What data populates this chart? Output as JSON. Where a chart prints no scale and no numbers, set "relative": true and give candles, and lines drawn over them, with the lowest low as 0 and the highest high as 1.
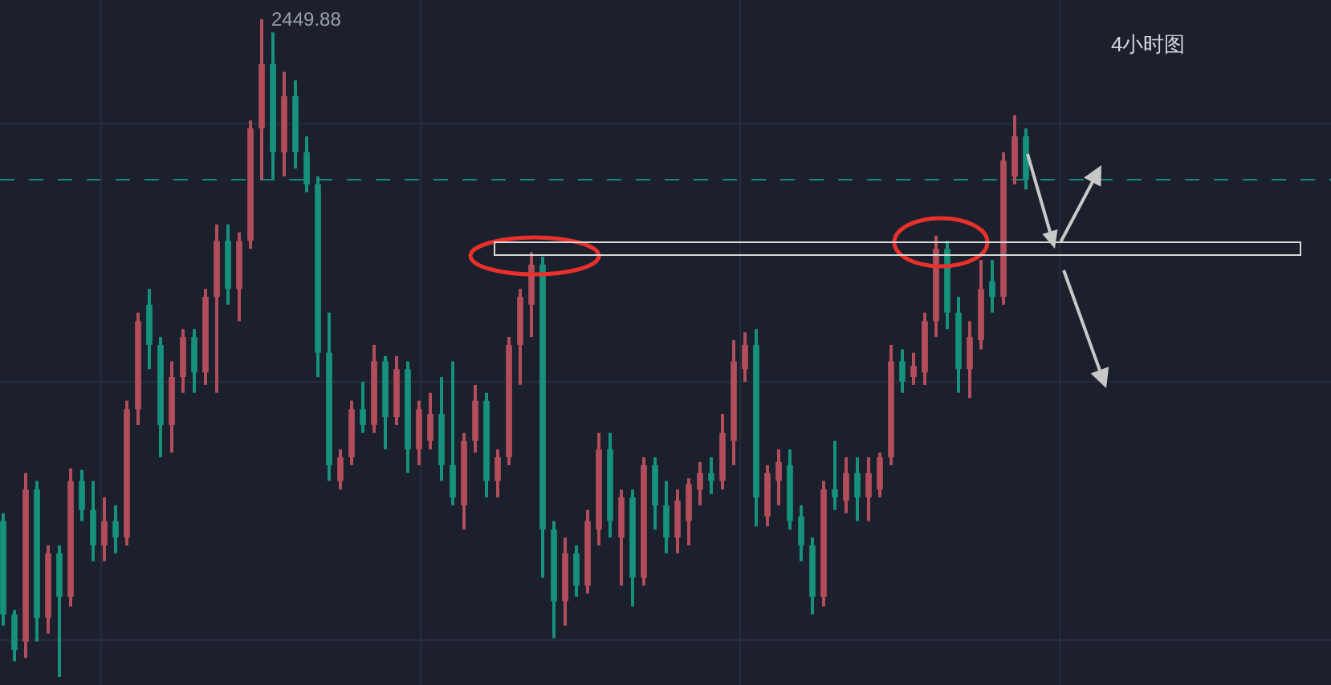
{
  "chart_data": {
    "type": "candlestick",
    "relative": true,
    "categories": [
      null,
      null,
      null,
      null,
      null,
      null,
      null,
      null,
      null,
      null,
      null,
      null,
      null,
      null,
      null,
      null,
      null,
      null,
      null,
      null,
      null,
      null,
      null,
      null,
      null,
      null,
      null,
      null,
      null,
      null,
      null,
      null,
      null,
      null,
      null,
      null,
      null,
      null,
      null,
      null,
      null,
      null,
      null,
      null,
      null,
      null,
      null,
      null,
      null,
      null,
      null,
      null,
      null,
      null,
      null,
      null,
      null,
      null,
      null,
      null,
      null,
      null,
      null,
      null,
      null,
      null,
      null,
      null,
      null,
      null,
      null,
      null,
      null,
      null,
      null,
      null,
      null,
      null,
      null,
      null,
      null,
      null,
      null,
      null,
      null,
      null,
      null,
      null,
      null,
      null,
      null,
      null
    ],
    "ohlc": [
      [
        0.237,
        0.249,
        0.078,
        0.095
      ],
      [
        0.095,
        0.102,
        0.024,
        0.041
      ],
      [
        0.054,
        0.31,
        0.029,
        0.285
      ],
      [
        0.285,
        0.298,
        0.054,
        0.09
      ],
      [
        0.09,
        0.2,
        0.066,
        0.188
      ],
      [
        0.188,
        0.2,
        0.0,
        0.122
      ],
      [
        0.122,
        0.317,
        0.107,
        0.298
      ],
      [
        0.298,
        0.315,
        0.237,
        0.254
      ],
      [
        0.254,
        0.298,
        0.176,
        0.2
      ],
      [
        0.2,
        0.273,
        0.176,
        0.237
      ],
      [
        0.237,
        0.261,
        0.188,
        0.212
      ],
      [
        0.212,
        0.42,
        0.2,
        0.407
      ],
      [
        0.407,
        0.554,
        0.383,
        0.541
      ],
      [
        0.566,
        0.59,
        0.468,
        0.505
      ],
      [
        0.505,
        0.517,
        0.334,
        0.383
      ],
      [
        0.383,
        0.48,
        0.341,
        0.456
      ],
      [
        0.456,
        0.529,
        0.432,
        0.517
      ],
      [
        0.517,
        0.529,
        0.432,
        0.463
      ],
      [
        0.463,
        0.59,
        0.444,
        0.578
      ],
      [
        0.578,
        0.688,
        0.432,
        0.663
      ],
      [
        0.663,
        0.688,
        0.566,
        0.59
      ],
      [
        0.59,
        0.676,
        0.541,
        0.663
      ],
      [
        0.663,
        0.846,
        0.651,
        0.834
      ],
      [
        0.834,
        1.0,
        0.756,
        0.932
      ],
      [
        0.932,
        0.98,
        0.756,
        0.798
      ],
      [
        0.798,
        0.92,
        0.761,
        0.883
      ],
      [
        0.883,
        0.907,
        0.773,
        0.798
      ],
      [
        0.798,
        0.822,
        0.737,
        0.749
      ],
      [
        0.749,
        0.761,
        0.456,
        0.493
      ],
      [
        0.493,
        0.554,
        0.298,
        0.322
      ],
      [
        0.298,
        0.346,
        0.285,
        0.334
      ],
      [
        0.334,
        0.42,
        0.322,
        0.407
      ],
      [
        0.407,
        0.449,
        0.371,
        0.383
      ],
      [
        0.383,
        0.505,
        0.371,
        0.48
      ],
      [
        0.48,
        0.488,
        0.346,
        0.395
      ],
      [
        0.395,
        0.488,
        0.383,
        0.468
      ],
      [
        0.468,
        0.48,
        0.31,
        0.346
      ],
      [
        0.346,
        0.42,
        0.322,
        0.407
      ],
      [
        0.359,
        0.432,
        0.346,
        0.4
      ],
      [
        0.4,
        0.456,
        0.298,
        0.322
      ],
      [
        0.322,
        0.48,
        0.261,
        0.273
      ],
      [
        0.261,
        0.371,
        0.224,
        0.359
      ],
      [
        0.359,
        0.444,
        0.341,
        0.42
      ],
      [
        0.42,
        0.432,
        0.273,
        0.298
      ],
      [
        0.298,
        0.346,
        0.273,
        0.334
      ],
      [
        0.334,
        0.517,
        0.322,
        0.505
      ],
      [
        0.505,
        0.59,
        0.444,
        0.578
      ],
      [
        0.566,
        0.646,
        0.517,
        0.627
      ],
      [
        0.627,
        0.639,
        0.151,
        0.224
      ],
      [
        0.224,
        0.237,
        0.059,
        0.115
      ],
      [
        0.115,
        0.212,
        0.078,
        0.188
      ],
      [
        0.188,
        0.2,
        0.122,
        0.139
      ],
      [
        0.139,
        0.254,
        0.127,
        0.237
      ],
      [
        0.224,
        0.371,
        0.2,
        0.346
      ],
      [
        0.346,
        0.371,
        0.212,
        0.237
      ],
      [
        0.212,
        0.285,
        0.139,
        0.273
      ],
      [
        0.273,
        0.285,
        0.107,
        0.151
      ],
      [
        0.151,
        0.334,
        0.139,
        0.322
      ],
      [
        0.322,
        0.334,
        0.224,
        0.261
      ],
      [
        0.261,
        0.298,
        0.188,
        0.212
      ],
      [
        0.212,
        0.285,
        0.188,
        0.268
      ],
      [
        0.237,
        0.302,
        0.2,
        0.293
      ],
      [
        0.285,
        0.327,
        0.261,
        0.31
      ],
      [
        0.31,
        0.334,
        0.278,
        0.298
      ],
      [
        0.298,
        0.4,
        0.285,
        0.371
      ],
      [
        0.359,
        0.512,
        0.322,
        0.48
      ],
      [
        0.468,
        0.524,
        0.449,
        0.505
      ],
      [
        0.505,
        0.529,
        0.229,
        0.273
      ],
      [
        0.244,
        0.322,
        0.229,
        0.31
      ],
      [
        0.298,
        0.346,
        0.261,
        0.327
      ],
      [
        0.322,
        0.346,
        0.224,
        0.237
      ],
      [
        0.244,
        0.261,
        0.176,
        0.2
      ],
      [
        0.2,
        0.212,
        0.095,
        0.122
      ],
      [
        0.122,
        0.298,
        0.107,
        0.285
      ],
      [
        0.285,
        0.359,
        0.254,
        0.273
      ],
      [
        0.268,
        0.334,
        0.249,
        0.31
      ],
      [
        0.31,
        0.334,
        0.237,
        0.273
      ],
      [
        0.273,
        0.334,
        0.237,
        0.31
      ],
      [
        0.285,
        0.341,
        0.273,
        0.334
      ],
      [
        0.334,
        0.505,
        0.322,
        0.48
      ],
      [
        0.48,
        0.498,
        0.432,
        0.449
      ],
      [
        0.456,
        0.493,
        0.444,
        0.473
      ],
      [
        0.463,
        0.554,
        0.444,
        0.541
      ],
      [
        0.541,
        0.671,
        0.517,
        0.651
      ],
      [
        0.651,
        0.663,
        0.529,
        0.554
      ],
      [
        0.554,
        0.578,
        0.432,
        0.468
      ],
      [
        0.468,
        0.541,
        0.424,
        0.517
      ],
      [
        0.512,
        0.634,
        0.498,
        0.59
      ],
      [
        0.602,
        0.634,
        0.554,
        0.578
      ],
      [
        0.578,
        0.798,
        0.566,
        0.785
      ],
      [
        0.761,
        0.854,
        0.749,
        0.822
      ],
      [
        0.822,
        0.834,
        0.741,
        0.756
      ]
    ],
    "colors": [
      "#16917c",
      "#16917c",
      "#b34d5b",
      "#16917c",
      "#b34d5b",
      "#16917c",
      "#b34d5b",
      "#16917c",
      "#16917c",
      "#b34d5b",
      "#16917c",
      "#b34d5b",
      "#b34d5b",
      "#16917c",
      "#16917c",
      "#b34d5b",
      "#b34d5b",
      "#16917c",
      "#b34d5b",
      "#b34d5b",
      "#16917c",
      "#b34d5b",
      "#b34d5b",
      "#b34d5b",
      "#16917c",
      "#b34d5b",
      "#16917c",
      "#16917c",
      "#16917c",
      "#16917c",
      "#b34d5b",
      "#b34d5b",
      "#16917c",
      "#b34d5b",
      "#16917c",
      "#b34d5b",
      "#16917c",
      "#b34d5b",
      "#b34d5b",
      "#16917c",
      "#16917c",
      "#b34d5b",
      "#b34d5b",
      "#16917c",
      "#b34d5b",
      "#b34d5b",
      "#b34d5b",
      "#b34d5b",
      "#16917c",
      "#16917c",
      "#b34d5b",
      "#16917c",
      "#b34d5b",
      "#b34d5b",
      "#16917c",
      "#b34d5b",
      "#16917c",
      "#b34d5b",
      "#16917c",
      "#16917c",
      "#b34d5b",
      "#b34d5b",
      "#b34d5b",
      "#16917c",
      "#b34d5b",
      "#b34d5b",
      "#b34d5b",
      "#16917c",
      "#b34d5b",
      "#b34d5b",
      "#16917c",
      "#16917c",
      "#16917c",
      "#b34d5b",
      "#16917c",
      "#b34d5b",
      "#16917c",
      "#b34d5b",
      "#b34d5b",
      "#b34d5b",
      "#16917c",
      "#b34d5b",
      "#b34d5b",
      "#b34d5b",
      "#16917c",
      "#16917c",
      "#b34d5b",
      "#b34d5b",
      "#16917c",
      "#b34d5b",
      "#b34d5b",
      "#16917c"
    ],
    "ref_lines": [
      {
        "axis": "y",
        "value": 0.756,
        "color": "#178a76",
        "line_style": "dashed"
      }
    ],
    "annotations": [
      "2449.88",
      "4小时图"
    ],
    "grid": true
  }
}
